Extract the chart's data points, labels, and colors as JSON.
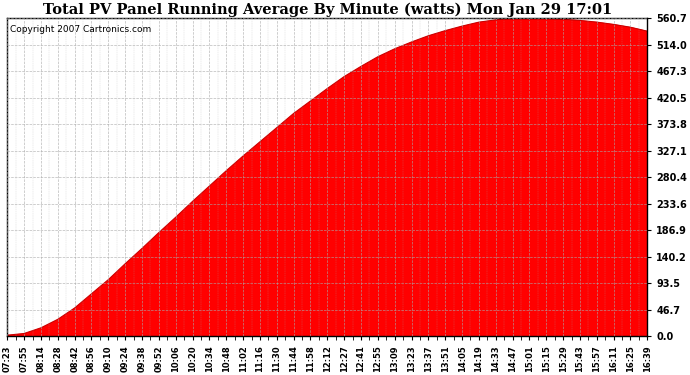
{
  "title": "Total PV Panel Running Average By Minute (watts) Mon Jan 29 17:01",
  "copyright": "Copyright 2007 Cartronics.com",
  "fill_color": "#FF0000",
  "line_color": "#CC0000",
  "background_color": "#FFFFFF",
  "grid_color": "#AAAAAA",
  "yticks": [
    0.0,
    46.7,
    93.5,
    140.2,
    186.9,
    233.6,
    280.4,
    327.1,
    373.8,
    420.5,
    467.3,
    514.0,
    560.7
  ],
  "ylim": [
    0.0,
    560.7
  ],
  "xtick_labels": [
    "07:23",
    "07:55",
    "08:14",
    "08:28",
    "08:42",
    "08:56",
    "09:10",
    "09:24",
    "09:38",
    "09:52",
    "10:06",
    "10:20",
    "10:34",
    "10:48",
    "11:02",
    "11:16",
    "11:30",
    "11:44",
    "11:58",
    "12:12",
    "12:27",
    "12:41",
    "12:55",
    "13:09",
    "13:23",
    "13:37",
    "13:51",
    "14:05",
    "14:19",
    "14:33",
    "14:47",
    "15:01",
    "15:15",
    "15:29",
    "15:43",
    "15:57",
    "16:11",
    "16:25",
    "16:39"
  ],
  "curve_y_values": [
    2.0,
    5.0,
    15.0,
    30.0,
    50.0,
    75.0,
    100.0,
    128.0,
    155.0,
    183.0,
    210.0,
    238.0,
    265.0,
    292.0,
    318.0,
    343.0,
    368.0,
    393.0,
    415.0,
    437.0,
    458.0,
    476.0,
    493.0,
    507.0,
    519.0,
    530.0,
    539.0,
    547.0,
    554.0,
    558.0,
    560.7,
    560.7,
    560.5,
    559.0,
    557.0,
    554.0,
    550.0,
    545.0,
    538.0
  ]
}
